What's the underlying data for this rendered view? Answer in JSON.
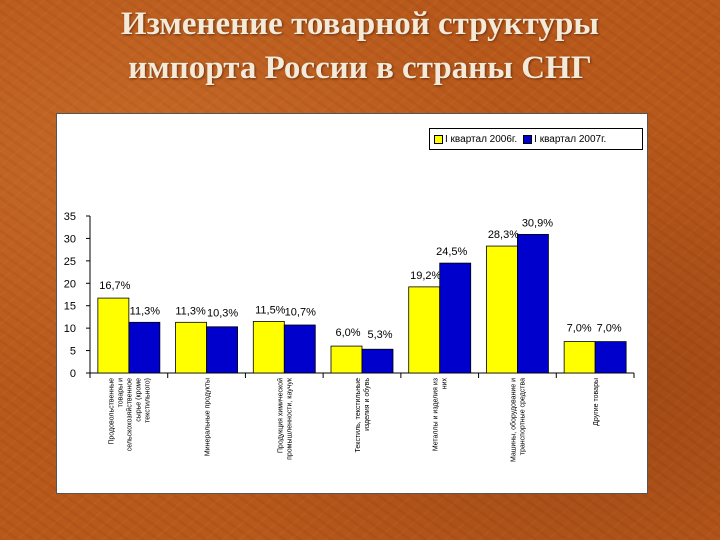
{
  "title": {
    "line1": "Изменение товарной структуры",
    "line2": "импорта России в страны СНГ"
  },
  "colors": {
    "background": "#b8591c",
    "series_2006": "#ffff00",
    "series_2007": "#0000cc",
    "title_text": "#f3ead9"
  },
  "chart_data": {
    "type": "bar",
    "title": "",
    "xlabel": "",
    "ylabel": "",
    "ylim": [
      0,
      35
    ],
    "yticks": [
      0,
      5,
      10,
      15,
      20,
      25,
      30,
      35
    ],
    "grid": false,
    "legend_position": "top-right",
    "categories": [
      "Продовольственные товары и сельскохозяйственное сырье (кроме текстильного)",
      "Минеральные продукты",
      "Продукция химической промышленности, каучук",
      "Текстиль, текстильные изделия и обувь",
      "Металлы и изделия из них",
      "Машины, оборудование и транспортные средства",
      "Другие товары"
    ],
    "category_lines": [
      [
        "Продовольственные",
        "товары и",
        "сельскохозяйственное",
        "сырье (кроме",
        "текстильного)"
      ],
      [
        "Минеральные продукты"
      ],
      [
        "Продукция химической",
        "промышленности, каучук"
      ],
      [
        "Текстиль, текстильные",
        "изделия и обувь"
      ],
      [
        "Металлы и изделия из",
        "них"
      ],
      [
        "Машины, оборудование и",
        "транспортные средства"
      ],
      [
        "Другие товары"
      ]
    ],
    "series": [
      {
        "name": "I квартал 2006г.",
        "values": [
          16.7,
          11.3,
          11.5,
          6.0,
          19.2,
          28.3,
          7.0
        ],
        "labels": [
          "16,7%",
          "11,3%",
          "11,5%",
          "6,0%",
          "19,2%",
          "28,3%",
          "7,0%"
        ]
      },
      {
        "name": "I квартал 2007г.",
        "values": [
          11.3,
          10.3,
          10.7,
          5.3,
          24.5,
          30.9,
          7.0
        ],
        "labels": [
          "11,3%",
          "10,3%",
          "10,7%",
          "5,3%",
          "24,5%",
          "30,9%",
          "7,0%"
        ]
      }
    ]
  }
}
